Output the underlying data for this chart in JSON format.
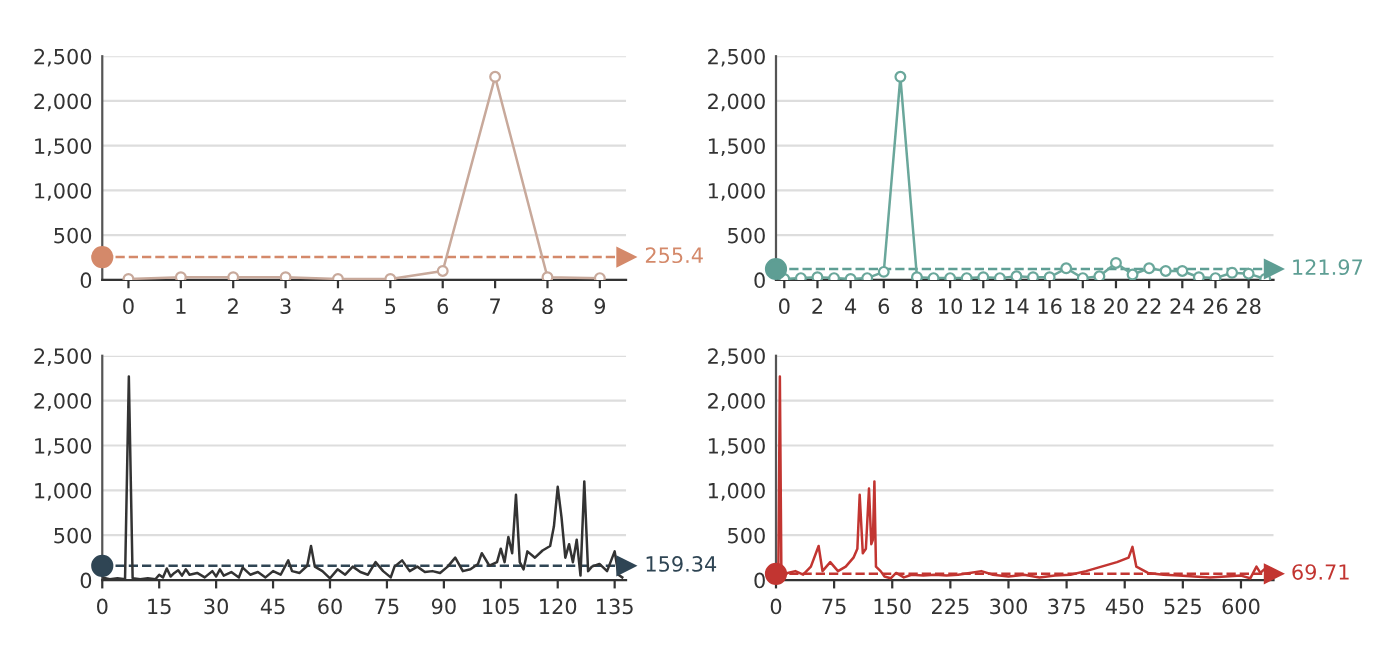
{
  "chart_data": [
    {
      "type": "line",
      "x": [
        0,
        1,
        2,
        3,
        4,
        5,
        6,
        7,
        8,
        9
      ],
      "series": [
        {
          "color": "#c8a99b",
          "values": [
            10,
            30,
            30,
            30,
            10,
            10,
            100,
            2270,
            30,
            20
          ]
        }
      ],
      "xlim": [
        -0.5,
        9.5
      ],
      "xticks": [
        0,
        1,
        2,
        3,
        4,
        5,
        6,
        7,
        8,
        9
      ],
      "ylim": [
        0,
        2500
      ],
      "yticks": [
        {
          "value": 0,
          "label": "0"
        },
        {
          "value": 500,
          "label": "500"
        },
        {
          "value": 1000,
          "label": "1,000"
        },
        {
          "value": 1500,
          "label": "1,500"
        },
        {
          "value": 2000,
          "label": "2,000"
        },
        {
          "value": 2500,
          "label": "2,500"
        }
      ],
      "grid": "y",
      "marker": "circle",
      "line_style": "solid",
      "ref_lines": [
        {
          "axis": "y",
          "value": 255.4,
          "label": "255.4",
          "color": "#d4896a",
          "line_style": "dashed"
        }
      ]
    },
    {
      "type": "line",
      "x": [
        0,
        1,
        2,
        3,
        4,
        5,
        6,
        7,
        8,
        9,
        10,
        11,
        12,
        13,
        14,
        15,
        16,
        17,
        18,
        19,
        20,
        21,
        22,
        23,
        24,
        25,
        26,
        27,
        28,
        29
      ],
      "series": [
        {
          "color": "#6aa79b",
          "values": [
            10,
            20,
            30,
            20,
            10,
            20,
            90,
            2270,
            30,
            20,
            20,
            20,
            30,
            20,
            40,
            30,
            30,
            130,
            20,
            40,
            190,
            60,
            130,
            100,
            100,
            30,
            20,
            80,
            70,
            10
          ]
        }
      ],
      "xlim": [
        -0.5,
        29.5
      ],
      "xticks": [
        0,
        2,
        4,
        6,
        8,
        10,
        12,
        14,
        16,
        18,
        20,
        22,
        24,
        26,
        28
      ],
      "ylim": [
        0,
        2500
      ],
      "yticks": [
        {
          "value": 0,
          "label": "0"
        },
        {
          "value": 500,
          "label": "500"
        },
        {
          "value": 1000,
          "label": "1,000"
        },
        {
          "value": 1500,
          "label": "1,500"
        },
        {
          "value": 2000,
          "label": "2,000"
        },
        {
          "value": 2500,
          "label": "2,500"
        }
      ],
      "grid": "y",
      "marker": "circle",
      "line_style": "solid",
      "ref_lines": [
        {
          "axis": "y",
          "value": 121.97,
          "label": "121.97",
          "color": "#5e9e94",
          "line_style": "dashed"
        }
      ]
    },
    {
      "type": "line",
      "x": [
        0,
        2,
        4,
        6,
        7,
        8,
        10,
        12,
        14,
        15,
        16,
        17,
        18,
        19,
        20,
        21,
        22,
        23,
        25,
        27,
        29,
        30,
        31,
        32,
        34,
        36,
        37,
        39,
        41,
        43,
        45,
        47,
        49,
        50,
        52,
        54,
        55,
        56,
        58,
        60,
        62,
        64,
        66,
        68,
        70,
        72,
        74,
        76,
        77,
        79,
        81,
        83,
        85,
        87,
        89,
        91,
        93,
        95,
        97,
        99,
        100,
        102,
        104,
        105,
        106,
        107,
        108,
        109,
        110,
        111,
        112,
        114,
        116,
        118,
        119,
        120,
        121,
        122,
        123,
        124,
        125,
        126,
        127,
        128,
        129,
        131,
        133,
        135,
        136,
        137
      ],
      "series": [
        {
          "color": "#333333",
          "values": [
            30,
            10,
            20,
            10,
            2270,
            20,
            10,
            20,
            10,
            60,
            30,
            130,
            40,
            80,
            110,
            50,
            120,
            60,
            80,
            30,
            100,
            40,
            120,
            50,
            90,
            30,
            140,
            60,
            90,
            30,
            100,
            60,
            220,
            100,
            80,
            160,
            380,
            150,
            100,
            20,
            120,
            60,
            150,
            90,
            60,
            200,
            100,
            30,
            150,
            220,
            100,
            150,
            90,
            100,
            80,
            150,
            250,
            100,
            120,
            180,
            300,
            160,
            200,
            350,
            200,
            480,
            300,
            950,
            200,
            120,
            320,
            250,
            330,
            380,
            600,
            1040,
            700,
            250,
            400,
            200,
            450,
            50,
            1100,
            100,
            150,
            180,
            100,
            320,
            60,
            30
          ]
        }
      ],
      "xlim": [
        0,
        138
      ],
      "xticks": [
        0,
        15,
        30,
        45,
        60,
        75,
        90,
        105,
        120,
        135
      ],
      "ylim": [
        0,
        2500
      ],
      "yticks": [
        {
          "value": 0,
          "label": "0"
        },
        {
          "value": 500,
          "label": "500"
        },
        {
          "value": 1000,
          "label": "1,000"
        },
        {
          "value": 1500,
          "label": "1,500"
        },
        {
          "value": 2000,
          "label": "2,000"
        },
        {
          "value": 2500,
          "label": "2,500"
        }
      ],
      "grid": "y",
      "marker": "none",
      "line_style": "solid",
      "ref_lines": [
        {
          "axis": "y",
          "value": 159.34,
          "label": "159.34",
          "color": "#2f4554",
          "line_style": "dashed"
        }
      ]
    },
    {
      "type": "line",
      "x": [
        0,
        3,
        5,
        7,
        15,
        25,
        35,
        45,
        55,
        60,
        70,
        80,
        90,
        100,
        105,
        108,
        112,
        116,
        120,
        123,
        125,
        127,
        129,
        135,
        140,
        148,
        155,
        165,
        175,
        190,
        205,
        220,
        235,
        250,
        265,
        280,
        300,
        320,
        340,
        360,
        380,
        400,
        420,
        440,
        455,
        460,
        465,
        480,
        500,
        520,
        540,
        560,
        580,
        600,
        612,
        620,
        625,
        630,
        636,
        642
      ],
      "series": [
        {
          "color": "#c23531",
          "values": [
            30,
            50,
            2270,
            30,
            80,
            100,
            60,
            150,
            380,
            100,
            200,
            100,
            150,
            250,
            350,
            950,
            300,
            350,
            1020,
            400,
            450,
            1100,
            150,
            100,
            40,
            20,
            80,
            30,
            60,
            50,
            60,
            50,
            60,
            80,
            100,
            60,
            40,
            60,
            30,
            50,
            60,
            100,
            150,
            200,
            250,
            370,
            150,
            80,
            60,
            50,
            40,
            30,
            40,
            50,
            20,
            150,
            80,
            120,
            60,
            30
          ]
        }
      ],
      "xlim": [
        0,
        642
      ],
      "xticks": [
        0,
        75,
        150,
        225,
        300,
        375,
        450,
        525,
        600
      ],
      "ylim": [
        0,
        2500
      ],
      "yticks": [
        {
          "value": 0,
          "label": "0"
        },
        {
          "value": 500,
          "label": "500"
        },
        {
          "value": 1000,
          "label": "1,000"
        },
        {
          "value": 1500,
          "label": "1,500"
        },
        {
          "value": 2000,
          "label": "2,000"
        },
        {
          "value": 2500,
          "label": "2,500"
        }
      ],
      "grid": "y",
      "marker": "none",
      "line_style": "solid",
      "ref_lines": [
        {
          "axis": "y",
          "value": 69.71,
          "label": "69.71",
          "color": "#c23531",
          "line_style": "dashed"
        }
      ]
    }
  ]
}
